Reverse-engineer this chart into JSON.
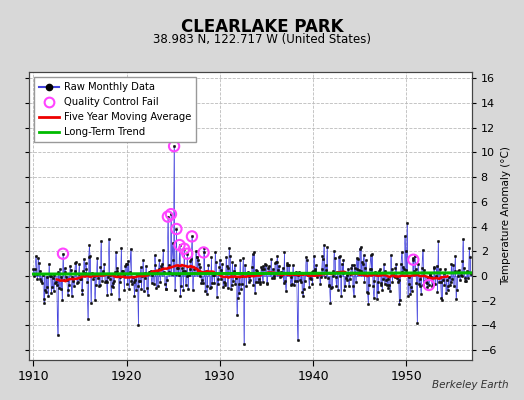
{
  "title": "CLEARLAKE PARK",
  "subtitle": "38.983 N, 122.717 W (United States)",
  "ylabel_right": "Temperature Anomaly (°C)",
  "attribution": "Berkeley Earth",
  "xlim": [
    1909.5,
    1957.0
  ],
  "ylim": [
    -6.8,
    16.5
  ],
  "yticks": [
    -6,
    -4,
    -2,
    0,
    2,
    4,
    6,
    8,
    10,
    12,
    14,
    16
  ],
  "xticks": [
    1910,
    1920,
    1930,
    1940,
    1950
  ],
  "bg_color": "#d8d8d8",
  "plot_bg_color": "#ffffff",
  "grid_color": "#bbbbbb",
  "raw_line_color": "#4444dd",
  "raw_marker_color": "#111111",
  "ma_color": "#ee0000",
  "trend_color": "#00bb00",
  "qc_color": "#ff44ff",
  "seed": 42,
  "n_years": 47,
  "start_year": 1910,
  "months_per_year": 12
}
